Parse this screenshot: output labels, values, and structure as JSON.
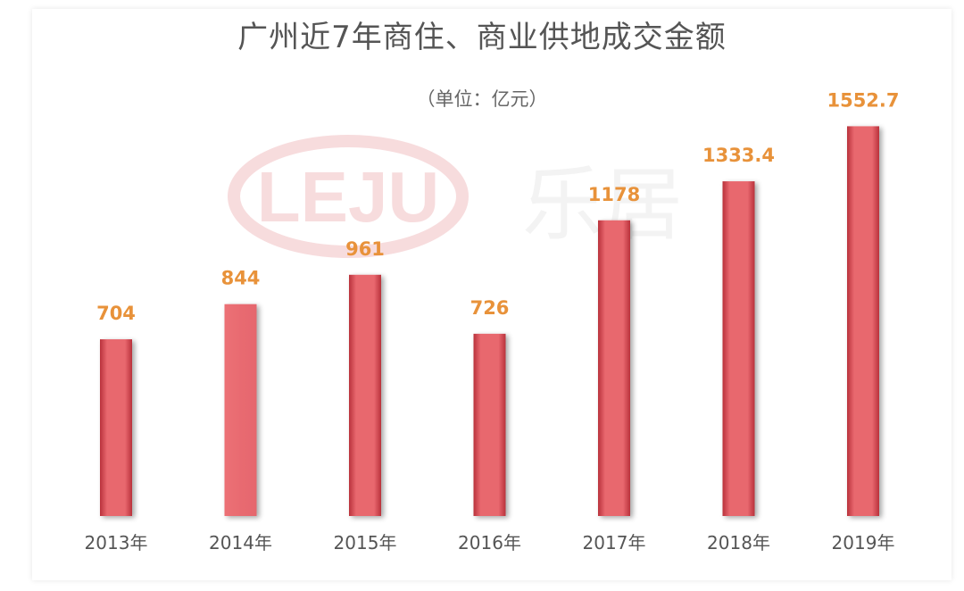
{
  "chart_data": {
    "type": "bar",
    "title": "广州近7年商住、商业供地成交金额",
    "subtitle": "（单位：亿元）",
    "categories": [
      "2013年",
      "2014年",
      "2015年",
      "2016年",
      "2017年",
      "2018年",
      "2019年"
    ],
    "series": [
      {
        "values": [
          704,
          844,
          961,
          726,
          1178,
          1333.4,
          1552.7
        ]
      }
    ],
    "value_labels": [
      "704",
      "844",
      "961",
      "726",
      "1178",
      "1333.4",
      "1552.7"
    ],
    "ylim": [
      0,
      1700
    ],
    "grid": false,
    "legend": "none"
  },
  "watermark": {
    "logo_text": "LEJU",
    "brand_text": "乐居"
  },
  "colors": {
    "bar": "#e8676e",
    "bar_dark": "#b9323c",
    "value_label": "#e8923a",
    "axis_label": "#555555",
    "title": "#555555",
    "watermark": "#f6d6d8"
  }
}
